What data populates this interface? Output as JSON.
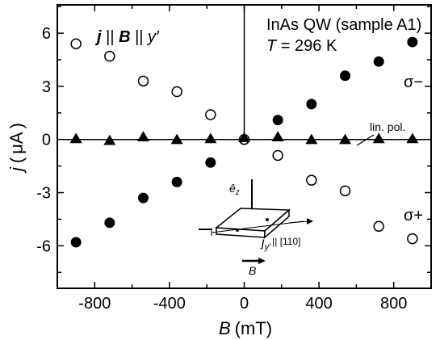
{
  "chart_data": {
    "type": "scatter",
    "xlabel": {
      "var": "B",
      "unit": "(mT)"
    },
    "ylabel": {
      "var": "j",
      "open": "(",
      "mu": "μ",
      "unit": "A",
      "close": ")"
    },
    "xlim": [
      -1000,
      1000
    ],
    "ylim": [
      -8.4,
      7.6
    ],
    "xticks": [
      -800,
      -400,
      0,
      400,
      800
    ],
    "xtick_labels": [
      "-800",
      "-400",
      "0",
      "400",
      "800"
    ],
    "yticks": [
      -6,
      -3,
      0,
      3,
      6
    ],
    "ytick_labels": [
      "-6",
      "-3",
      "0",
      "3",
      "6"
    ],
    "grid": false,
    "series": [
      {
        "name": "σ−",
        "marker": "filled-circle",
        "x": [
          -900,
          -720,
          -540,
          -360,
          -180,
          0,
          180,
          360,
          540,
          720,
          900
        ],
        "y": [
          -5.8,
          -4.7,
          -3.3,
          -2.4,
          -1.3,
          0.0,
          1.1,
          2.0,
          3.6,
          4.4,
          5.5
        ]
      },
      {
        "name": "σ+",
        "marker": "open-circle",
        "x": [
          -900,
          -720,
          -540,
          -360,
          -180,
          0,
          180,
          360,
          540,
          720,
          900
        ],
        "y": [
          5.4,
          4.7,
          3.3,
          2.7,
          1.4,
          0.0,
          -0.9,
          -2.3,
          -2.9,
          -4.9,
          -5.6
        ]
      },
      {
        "name": "lin. pol.",
        "marker": "filled-triangle",
        "x": [
          -900,
          -720,
          -540,
          -360,
          -180,
          0,
          180,
          360,
          540,
          720,
          900
        ],
        "y": [
          0.05,
          -0.05,
          0.15,
          0.0,
          0.05,
          0.1,
          0.15,
          0.0,
          0.0,
          0.05,
          0.05
        ]
      }
    ],
    "annotations": {
      "sample_title": "InAs QW (sample A1)",
      "temperature": {
        "var": "T",
        "value": " = 296 K"
      },
      "geometry": {
        "j": "j",
        "par1": " || ",
        "B": "B",
        "par2": " || ",
        "y": "y′"
      },
      "sigma_minus": "σ−",
      "sigma_plus": "σ+",
      "lin_pol": "lin. pol.",
      "inset_ez": "ê",
      "inset_ez_sub": "z",
      "inset_jy": "j",
      "inset_jy_sub": "y′",
      "inset_dir": "|| [110]",
      "inset_B": "B"
    }
  }
}
